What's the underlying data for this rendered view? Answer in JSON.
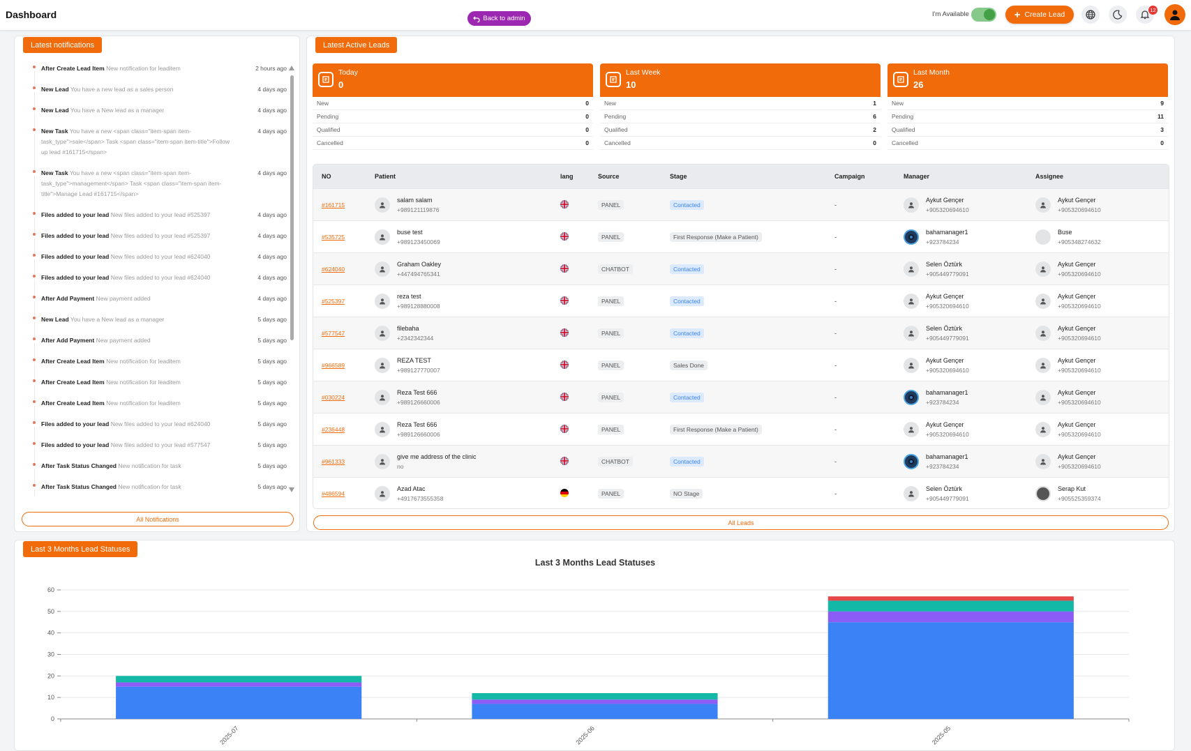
{
  "header": {
    "title": "Dashboard",
    "back_label": "Back to admin",
    "available_label": "I'm Available",
    "create_label": "Create Lead",
    "notif_count": "12"
  },
  "notifications": {
    "tag": "Latest notifications",
    "all_label": "All Notifications",
    "items": [
      {
        "title": "After Create Lead Item",
        "msg": "New notification for leaditem",
        "when": "2 hours ago"
      },
      {
        "title": "New Lead",
        "msg": "You have a new lead as a sales person",
        "when": "4 days ago"
      },
      {
        "title": "New Lead",
        "msg": "You have a New lead as a manager",
        "when": "4 days ago"
      },
      {
        "title": "New Task",
        "msg": "You have a new <span class=\"item-span item-task_type\">sale</span> Task <span class=\"item-span item-title\">Follow up lead #161715</span>",
        "when": "4 days ago"
      },
      {
        "title": "New Task",
        "msg": "You have a new <span class=\"item-span item-task_type\">management</span> Task <span class=\"item-span item-title\">Manage Lead #161715</span>",
        "when": "4 days ago"
      },
      {
        "title": "Files added to your lead",
        "msg": "New files added to your lead #525397",
        "when": "4 days ago"
      },
      {
        "title": "Files added to your lead",
        "msg": "New files added to your lead #525397",
        "when": "4 days ago"
      },
      {
        "title": "Files added to your lead",
        "msg": "New files added to your lead #624040",
        "when": "4 days ago"
      },
      {
        "title": "Files added to your lead",
        "msg": "New files added to your lead #624040",
        "when": "4 days ago"
      },
      {
        "title": "After Add Payment",
        "msg": "New payment added",
        "when": "4 days ago"
      },
      {
        "title": "New Lead",
        "msg": "You have a New lead as a manager",
        "when": "5 days ago"
      },
      {
        "title": "After Add Payment",
        "msg": "New payment added",
        "when": "5 days ago"
      },
      {
        "title": "After Create Lead Item",
        "msg": "New notification for leaditem",
        "when": "5 days ago"
      },
      {
        "title": "After Create Lead Item",
        "msg": "New notification for leaditem",
        "when": "5 days ago"
      },
      {
        "title": "After Create Lead Item",
        "msg": "New notification for leaditem",
        "when": "5 days ago"
      },
      {
        "title": "Files added to your lead",
        "msg": "New files added to your lead #624040",
        "when": "5 days ago"
      },
      {
        "title": "Files added to your lead",
        "msg": "New files added to your lead #577547",
        "when": "5 days ago"
      },
      {
        "title": "After Task Status Changed",
        "msg": "New notification for task",
        "when": "5 days ago"
      },
      {
        "title": "After Task Status Changed",
        "msg": "New notification for task",
        "when": "5 days ago"
      }
    ]
  },
  "leads": {
    "tag": "Latest Active Leads",
    "all_label": "All Leads",
    "stats": [
      {
        "label": "Today",
        "total": "0",
        "rows": [
          [
            "New",
            "0"
          ],
          [
            "Pending",
            "0"
          ],
          [
            "Qualified",
            "0"
          ],
          [
            "Cancelled",
            "0"
          ]
        ]
      },
      {
        "label": "Last Week",
        "total": "10",
        "rows": [
          [
            "New",
            "1"
          ],
          [
            "Pending",
            "6"
          ],
          [
            "Qualified",
            "2"
          ],
          [
            "Cancelled",
            "0"
          ]
        ]
      },
      {
        "label": "Last Month",
        "total": "26",
        "rows": [
          [
            "New",
            "9"
          ],
          [
            "Pending",
            "11"
          ],
          [
            "Qualified",
            "3"
          ],
          [
            "Cancelled",
            "0"
          ]
        ]
      }
    ],
    "columns": [
      "NO",
      "Patient",
      "lang",
      "Source",
      "Stage",
      "Campaign",
      "Manager",
      "Assignee"
    ],
    "rows": [
      {
        "no": "#161715",
        "patient": "salam salam",
        "phone": "+989121119876",
        "lang": "uk",
        "source": "PANEL",
        "stage": "Contacted",
        "campaign": "-",
        "manager": "Aykut Gençer",
        "mphone": "+905320694610",
        "mav": "default",
        "assignee": "Aykut Gençer",
        "aphone": "+905320694610",
        "aav": "default"
      },
      {
        "no": "#535725",
        "patient": "buse test",
        "phone": "+989123450069",
        "lang": "uk",
        "source": "PANEL",
        "stage": "First Response (Make a Patient)",
        "campaign": "-",
        "manager": "bahamanager1",
        "mphone": "+923784234",
        "mav": "dark",
        "assignee": "Buse",
        "aphone": "+905348274632",
        "aav": "blank"
      },
      {
        "no": "#624040",
        "patient": "Graham Oakley",
        "phone": "+447494765341",
        "lang": "uk",
        "source": "CHATBOT",
        "stage": "Contacted",
        "campaign": "-",
        "manager": "Selen Öztürk",
        "mphone": "+905449779091",
        "mav": "default",
        "assignee": "Aykut Gençer",
        "aphone": "+905320694610",
        "aav": "default"
      },
      {
        "no": "#525397",
        "patient": "reza test",
        "phone": "+989128880008",
        "lang": "uk",
        "source": "PANEL",
        "stage": "Contacted",
        "campaign": "-",
        "manager": "Aykut Gençer",
        "mphone": "+905320694610",
        "mav": "default",
        "assignee": "Aykut Gençer",
        "aphone": "+905320694610",
        "aav": "default"
      },
      {
        "no": "#577547",
        "patient": "filebaha",
        "phone": "+2342342344",
        "lang": "uk",
        "source": "PANEL",
        "stage": "Contacted",
        "campaign": "-",
        "manager": "Selen Öztürk",
        "mphone": "+905449779091",
        "mav": "default",
        "assignee": "Aykut Gençer",
        "aphone": "+905320694610",
        "aav": "default"
      },
      {
        "no": "#966589",
        "patient": "REZA TEST",
        "phone": "+989127770007",
        "lang": "uk",
        "source": "PANEL",
        "stage": "Sales Done",
        "campaign": "-",
        "manager": "Aykut Gençer",
        "mphone": "+905320694610",
        "mav": "default",
        "assignee": "Aykut Gençer",
        "aphone": "+905320694610",
        "aav": "default"
      },
      {
        "no": "#030224",
        "patient": "Reza Test 666",
        "phone": "+989126660006",
        "lang": "uk",
        "source": "PANEL",
        "stage": "Contacted",
        "campaign": "-",
        "manager": "bahamanager1",
        "mphone": "+923784234",
        "mav": "dark",
        "assignee": "Aykut Gençer",
        "aphone": "+905320694610",
        "aav": "default"
      },
      {
        "no": "#236448",
        "patient": "Reza Test 666",
        "phone": "+989126660006",
        "lang": "uk",
        "source": "PANEL",
        "stage": "First Response (Make a Patient)",
        "campaign": "-",
        "manager": "Aykut Gençer",
        "mphone": "+905320694610",
        "mav": "default",
        "assignee": "Aykut Gençer",
        "aphone": "+905320694610",
        "aav": "default"
      },
      {
        "no": "#961333",
        "patient": "give me address of the clinic",
        "phone": "no",
        "lang": "uk",
        "source": "CHATBOT",
        "stage": "Contacted",
        "campaign": "-",
        "manager": "bahamanager1",
        "mphone": "+923784234",
        "mav": "dark",
        "assignee": "Aykut Gençer",
        "aphone": "+905320694610",
        "aav": "default"
      },
      {
        "no": "#486594",
        "patient": "Azad Atac",
        "phone": "+4917673555358",
        "lang": "de",
        "source": "PANEL",
        "stage": "NO Stage",
        "campaign": "-",
        "manager": "Selen Öztürk",
        "mphone": "+905449779091",
        "mav": "default",
        "assignee": "Serap Kut",
        "aphone": "+905525359374",
        "aav": "photo"
      }
    ]
  },
  "chart_section": {
    "tag": "Last 3 Months Lead Statuses"
  },
  "chart_data": {
    "type": "bar",
    "stacked": true,
    "title": "Last 3 Months Lead Statuses",
    "categories": [
      "2025-07",
      "2025-06",
      "2025-05"
    ],
    "ylim": [
      0,
      60
    ],
    "yticks": [
      0,
      10,
      20,
      30,
      40,
      50,
      60
    ],
    "grid": true,
    "series": [
      {
        "color": "#3b82f6",
        "values": [
          15,
          7,
          45
        ]
      },
      {
        "color": "#8b5cf6",
        "values": [
          2,
          2,
          5
        ]
      },
      {
        "color": "#14b8a6",
        "values": [
          3,
          3,
          5
        ]
      },
      {
        "color": "#e54848",
        "values": [
          0,
          0,
          2
        ]
      }
    ]
  }
}
